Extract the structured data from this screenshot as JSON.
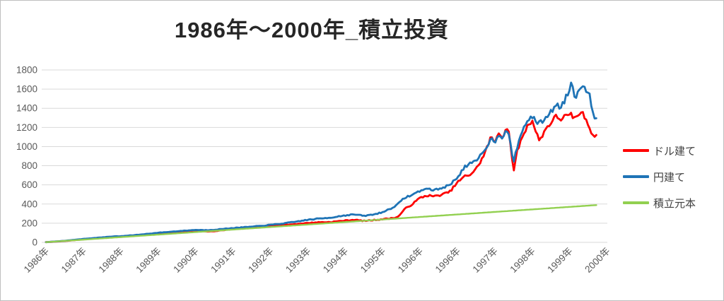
{
  "chart_data": {
    "type": "line",
    "title": "1986年〜2000年_積立投資",
    "xlabel": "",
    "ylabel": "",
    "ylim": [
      0,
      1800
    ],
    "y_ticks": [
      0,
      200,
      400,
      600,
      800,
      1000,
      1200,
      1400,
      1600,
      1800
    ],
    "x_tick_labels": [
      "1986年",
      "1987年",
      "1988年",
      "1989年",
      "1990年",
      "1991年",
      "1992年",
      "1993年",
      "1994年",
      "1995年",
      "1996年",
      "1996年",
      "1997年",
      "1998年",
      "1999年",
      "2000年"
    ],
    "grid": "horizontal",
    "legend_position": "right",
    "colors": {
      "grid": "#d9d9d9",
      "axis_labels": "#595959",
      "title": "#262626",
      "legend_text": "#404040"
    },
    "series": [
      {
        "name": "ドル建て",
        "color": "#fe0000",
        "line_width": 2.8,
        "noise": 0.02,
        "points": [
          [
            0,
            2
          ],
          [
            0.5,
            14
          ],
          [
            1,
            32
          ],
          [
            1.5,
            47
          ],
          [
            1.8,
            58
          ],
          [
            2,
            58
          ],
          [
            2.5,
            74
          ],
          [
            3,
            96
          ],
          [
            3.5,
            110
          ],
          [
            4,
            122
          ],
          [
            4.3,
            113
          ],
          [
            4.6,
            120
          ],
          [
            5,
            140
          ],
          [
            5.5,
            152
          ],
          [
            6,
            170
          ],
          [
            6.5,
            185
          ],
          [
            7,
            202
          ],
          [
            7.3,
            210
          ],
          [
            7.6,
            212
          ],
          [
            8,
            228
          ],
          [
            8.25,
            236
          ],
          [
            8.5,
            224
          ],
          [
            8.75,
            232
          ],
          [
            9,
            242
          ],
          [
            9.2,
            250
          ],
          [
            9.4,
            262
          ],
          [
            9.6,
            350
          ],
          [
            9.8,
            400
          ],
          [
            10,
            465
          ],
          [
            10.2,
            490
          ],
          [
            10.4,
            480
          ],
          [
            10.6,
            500
          ],
          [
            10.8,
            530
          ],
          [
            11,
            625
          ],
          [
            11.2,
            690
          ],
          [
            11.35,
            710
          ],
          [
            11.5,
            765
          ],
          [
            11.7,
            900
          ],
          [
            11.9,
            1100
          ],
          [
            12,
            1040
          ],
          [
            12.1,
            1160
          ],
          [
            12.2,
            1090
          ],
          [
            12.35,
            1220
          ],
          [
            12.5,
            745
          ],
          [
            12.6,
            950
          ],
          [
            12.75,
            1120
          ],
          [
            12.9,
            1230
          ],
          [
            13,
            1280
          ],
          [
            13.1,
            1150
          ],
          [
            13.2,
            1060
          ],
          [
            13.35,
            1180
          ],
          [
            13.5,
            1250
          ],
          [
            13.65,
            1320
          ],
          [
            13.75,
            1280
          ],
          [
            13.85,
            1320
          ],
          [
            13.95,
            1310
          ],
          [
            14.05,
            1330
          ],
          [
            14.15,
            1290
          ],
          [
            14.26,
            1350
          ],
          [
            14.35,
            1340
          ],
          [
            14.45,
            1280
          ],
          [
            14.55,
            1180
          ],
          [
            14.62,
            1130
          ],
          [
            14.68,
            1110
          ],
          [
            14.75,
            1090
          ]
        ]
      },
      {
        "name": "円建て",
        "color": "#1f74b6",
        "line_width": 2.8,
        "noise": 0.02,
        "points": [
          [
            0,
            2
          ],
          [
            0.5,
            16
          ],
          [
            1,
            36
          ],
          [
            1.5,
            52
          ],
          [
            1.8,
            62
          ],
          [
            2,
            64
          ],
          [
            2.5,
            80
          ],
          [
            3,
            100
          ],
          [
            3.5,
            116
          ],
          [
            4,
            130
          ],
          [
            4.3,
            127
          ],
          [
            4.6,
            135
          ],
          [
            5,
            150
          ],
          [
            5.5,
            163
          ],
          [
            6,
            182
          ],
          [
            6.5,
            205
          ],
          [
            7,
            235
          ],
          [
            7.3,
            248
          ],
          [
            7.6,
            258
          ],
          [
            8,
            282
          ],
          [
            8.25,
            292
          ],
          [
            8.5,
            276
          ],
          [
            8.75,
            290
          ],
          [
            9,
            315
          ],
          [
            9.2,
            350
          ],
          [
            9.4,
            395
          ],
          [
            9.6,
            470
          ],
          [
            9.8,
            495
          ],
          [
            10,
            540
          ],
          [
            10.2,
            560
          ],
          [
            10.4,
            545
          ],
          [
            10.6,
            570
          ],
          [
            10.8,
            600
          ],
          [
            11,
            680
          ],
          [
            11.2,
            790
          ],
          [
            11.35,
            820
          ],
          [
            11.5,
            845
          ],
          [
            11.7,
            950
          ],
          [
            11.9,
            1080
          ],
          [
            12,
            1050
          ],
          [
            12.1,
            1130
          ],
          [
            12.2,
            1100
          ],
          [
            12.35,
            1180
          ],
          [
            12.5,
            830
          ],
          [
            12.6,
            1000
          ],
          [
            12.75,
            1180
          ],
          [
            12.9,
            1290
          ],
          [
            13,
            1310
          ],
          [
            13.1,
            1260
          ],
          [
            13.2,
            1240
          ],
          [
            13.35,
            1300
          ],
          [
            13.5,
            1360
          ],
          [
            13.65,
            1440
          ],
          [
            13.75,
            1410
          ],
          [
            13.85,
            1470
          ],
          [
            13.95,
            1550
          ],
          [
            14.05,
            1670
          ],
          [
            14.15,
            1510
          ],
          [
            14.25,
            1600
          ],
          [
            14.33,
            1660
          ],
          [
            14.45,
            1560
          ],
          [
            14.52,
            1610
          ],
          [
            14.58,
            1450
          ],
          [
            14.65,
            1330
          ],
          [
            14.7,
            1270
          ],
          [
            14.75,
            1300
          ]
        ]
      },
      {
        "name": "積立元本",
        "color": "#92d050",
        "line_width": 2.4,
        "noise": 0,
        "points": [
          [
            0,
            2
          ],
          [
            14.75,
            390
          ]
        ]
      }
    ]
  }
}
